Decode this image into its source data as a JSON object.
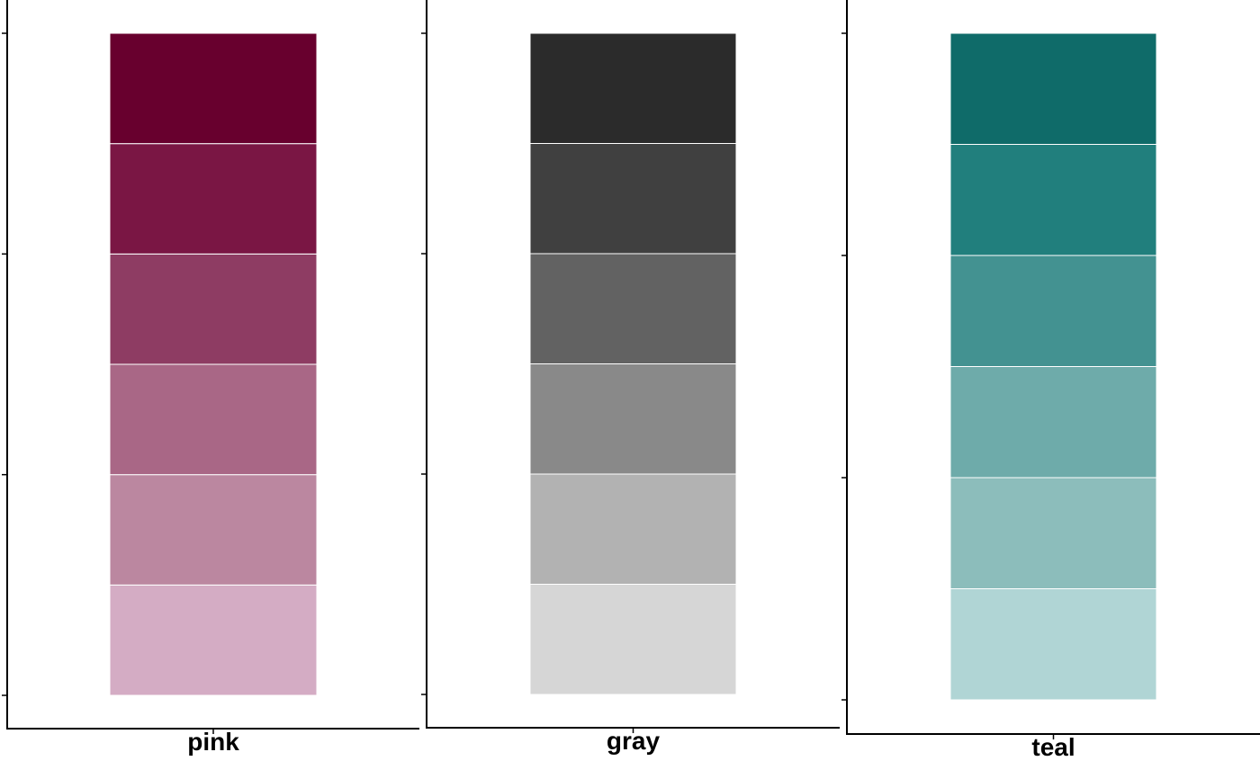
{
  "chart_data": [
    {
      "type": "bar",
      "orientation": "vertical-stacked",
      "xlabel": "pink",
      "ylim": [
        0,
        6
      ],
      "yticks": [
        0,
        2,
        4,
        6
      ],
      "tick_labels_visible": false,
      "grid": false,
      "segments": [
        {
          "value": 1,
          "color": "#d4acc4"
        },
        {
          "value": 1,
          "color": "#bb87a0"
        },
        {
          "value": 1,
          "color": "#a96786"
        },
        {
          "value": 1,
          "color": "#8e3c63"
        },
        {
          "value": 1,
          "color": "#7a1644"
        },
        {
          "value": 1,
          "color": "#68002e"
        }
      ]
    },
    {
      "type": "bar",
      "orientation": "vertical-stacked",
      "xlabel": "gray",
      "ylim": [
        0,
        6
      ],
      "yticks": [
        0,
        2,
        4,
        6
      ],
      "tick_labels_visible": false,
      "grid": false,
      "segments": [
        {
          "value": 1,
          "color": "#d6d6d6"
        },
        {
          "value": 1,
          "color": "#b2b2b2"
        },
        {
          "value": 1,
          "color": "#898989"
        },
        {
          "value": 1,
          "color": "#626262"
        },
        {
          "value": 1,
          "color": "#404040"
        },
        {
          "value": 1,
          "color": "#2b2b2b"
        }
      ]
    },
    {
      "type": "bar",
      "orientation": "vertical-stacked",
      "xlabel": "teal",
      "ylim": [
        0,
        6
      ],
      "yticks": [
        0,
        2,
        4,
        6
      ],
      "tick_labels_visible": false,
      "grid": false,
      "segments": [
        {
          "value": 1,
          "color": "#b0d5d5"
        },
        {
          "value": 1,
          "color": "#8cbdbb"
        },
        {
          "value": 1,
          "color": "#6eabaa"
        },
        {
          "value": 1,
          "color": "#439291"
        },
        {
          "value": 1,
          "color": "#217f7d"
        },
        {
          "value": 1,
          "color": "#0f6b69"
        }
      ]
    }
  ]
}
